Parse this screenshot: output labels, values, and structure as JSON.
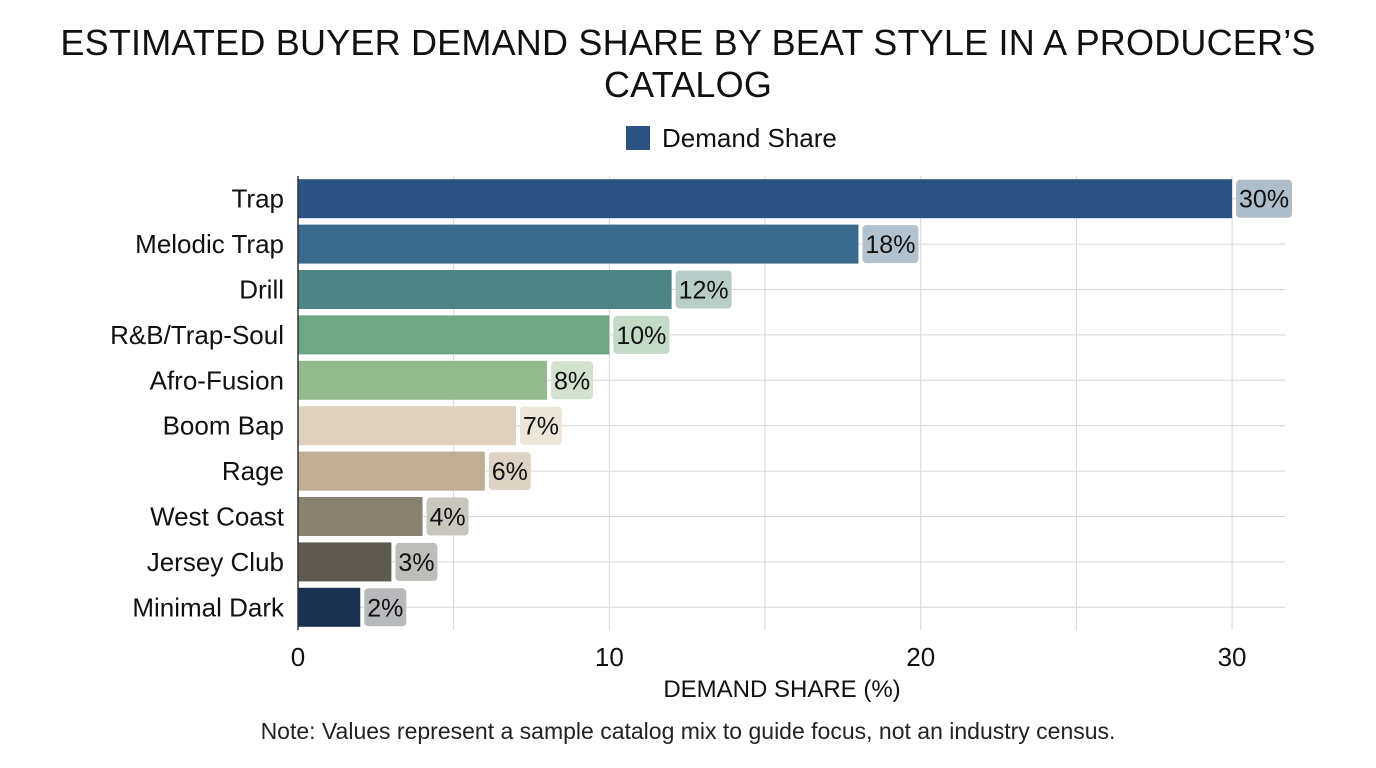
{
  "chart_data": {
    "type": "bar",
    "orientation": "horizontal",
    "title": "ESTIMATED BUYER DEMAND SHARE BY BEAT STYLE IN A PRODUCER’S CATALOG",
    "legend": {
      "label": "Demand Share",
      "placement": "top-center",
      "color": "#2c5281"
    },
    "xlabel": "DEMAND SHARE (%)",
    "ylabel": "",
    "xlim": [
      0,
      31.7
    ],
    "xticks": [
      0,
      10,
      20,
      30
    ],
    "grid": true,
    "categories": [
      "Trap",
      "Melodic Trap",
      "Drill",
      "R&B/Trap-Soul",
      "Afro-Fusion",
      "Boom Bap",
      "Rage",
      "West Coast",
      "Jersey Club",
      "Minimal Dark"
    ],
    "series": [
      {
        "name": "Demand Share",
        "values": [
          30,
          18,
          12,
          10,
          8,
          7,
          6,
          4,
          3,
          2
        ],
        "value_labels": [
          "30%",
          "18%",
          "12%",
          "10%",
          "8%",
          "7%",
          "6%",
          "4%",
          "3%",
          "2%"
        ]
      }
    ],
    "bar_colors": [
      "#2b5282",
      "#3a6a8e",
      "#4e8484",
      "#6da784",
      "#95b98f",
      "#ddd1bd",
      "#bfae95",
      "#8a8270",
      "#5e5a50",
      "#1a3050"
    ],
    "label_box_colors": [
      "#aebdca",
      "#b1c1cd",
      "#b9cdc8",
      "#c2dac6",
      "#d3e2cf",
      "#ece6d9",
      "#ddd3c4",
      "#c9c6bd",
      "#bdbdba",
      "#b7b9bc"
    ],
    "note": "Note: Values represent a sample catalog mix to guide focus, not an industry census."
  }
}
